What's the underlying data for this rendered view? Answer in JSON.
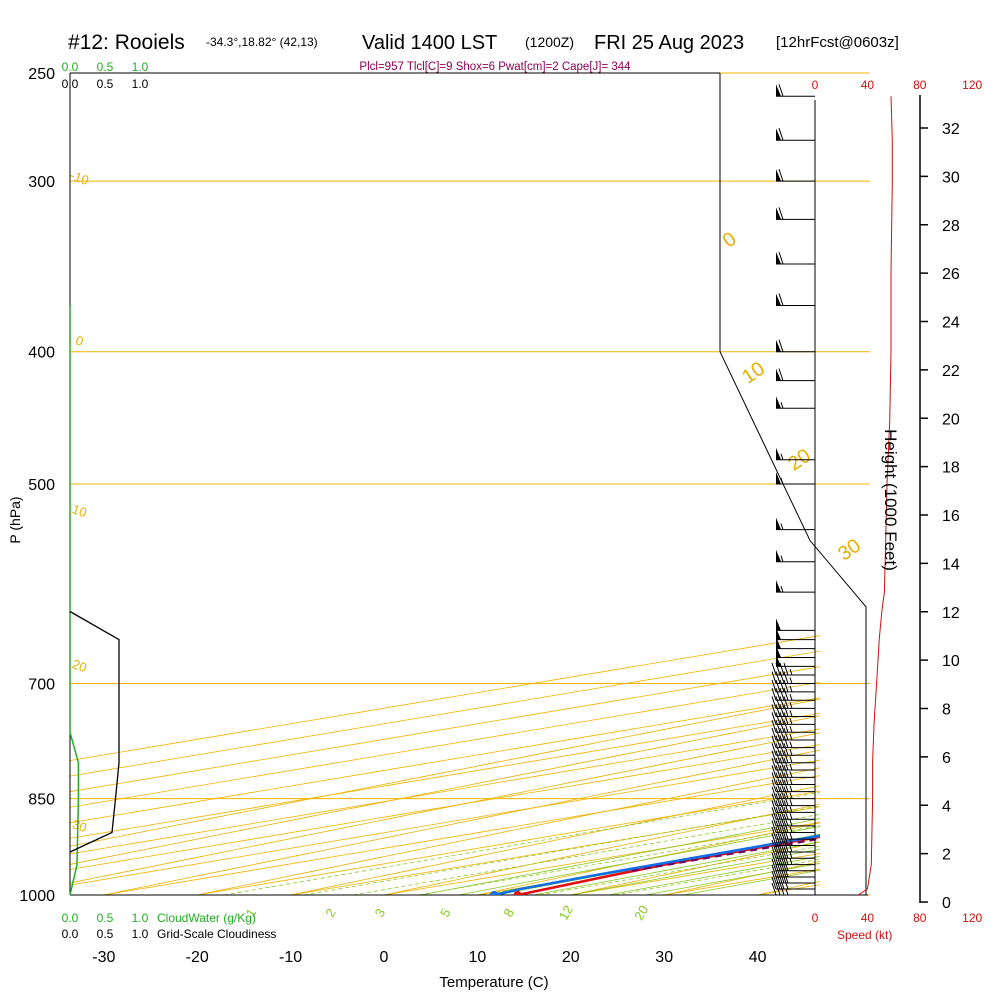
{
  "header": {
    "station": "#12: Rooiels",
    "coords": "-34.3°,18.82° (42,13)",
    "valid": "Valid 1400 LST",
    "zulu": "(1200Z)",
    "date": "FRI 25 Aug 2023",
    "fcst": "[12hrFcst@0603z]",
    "indices": "Plcl=957 Tlcl[C]=9 Shox=6 Pwat[cm]=2 Cape[J]= 344"
  },
  "labels": {
    "pressure_axis": "P (hPa)",
    "temperature_axis": "Temperature (C)",
    "height_axis": "Height (1000 Feet)",
    "speed_axis": "Speed (kt)",
    "cloudwater": "CloudWater (g/Kg)",
    "cloudiness": "Grid-Scale Cloudiness"
  },
  "colors": {
    "isobar": "#f0b400",
    "dry_adiabat": "#e8b000",
    "moist_adiabat": "#88c820",
    "mixing_ratio": "#88c820",
    "temperature": "#e01010",
    "dewpoint": "#1070e8",
    "parcel": "#700060",
    "cloudwater": "#20b020",
    "cloudiness": "#000000",
    "wind_speed": "#d01010",
    "indices": "#900050"
  },
  "chart_data": {
    "type": "line",
    "diagram": "skew-T log-P",
    "pressure_ticks": [
      250,
      300,
      400,
      500,
      700,
      850,
      1000
    ],
    "temperature_ticks": [
      -30,
      -20,
      -10,
      0,
      10,
      20,
      30,
      40
    ],
    "height_ticks_kft": [
      0,
      2,
      4,
      6,
      8,
      10,
      12,
      14,
      16,
      18,
      20,
      22,
      24,
      26,
      28,
      30,
      32
    ],
    "speed_ticks_kt": [
      0,
      40,
      80,
      120
    ],
    "cloud_ticks": [
      "0.0",
      "0.5",
      "1.0"
    ],
    "dry_adiabat_labels": [
      "-10",
      "0",
      "10",
      "20",
      "30",
      "0",
      "10",
      "20",
      "30"
    ],
    "mixing_ratio_labels": [
      "1",
      "2",
      "3",
      "5",
      "8",
      "12",
      "20"
    ],
    "series": [
      {
        "key": "temperature",
        "name": "",
        "points": [
          [
            1000,
            14.3
          ],
          [
            970,
            12.0
          ],
          [
            950,
            10.5
          ],
          [
            900,
            9.0
          ],
          [
            850,
            8.3
          ],
          [
            800,
            7.3
          ],
          [
            750,
            6.2
          ],
          [
            700,
            5.0
          ],
          [
            650,
            3.8
          ],
          [
            600,
            3.4
          ],
          [
            550,
            3.5
          ],
          [
            500,
            2.5
          ],
          [
            450,
            1.0
          ],
          [
            400,
            -1.5
          ],
          [
            350,
            -5.0
          ],
          [
            320,
            -6.5
          ],
          [
            300,
            -7.0
          ],
          [
            280,
            -6.5
          ],
          [
            260,
            -5.0
          ]
        ]
      },
      {
        "key": "dewpoint",
        "name": "",
        "points": [
          [
            1000,
            11.8
          ],
          [
            990,
            10.8
          ],
          [
            970,
            10.0
          ],
          [
            950,
            9.5
          ],
          [
            900,
            8.5
          ],
          [
            850,
            7.0
          ],
          [
            800,
            4.8
          ],
          [
            750,
            3.5
          ],
          [
            700,
            2.5
          ],
          [
            680,
            1.5
          ],
          [
            650,
            -0.5
          ],
          [
            620,
            -4
          ],
          [
            600,
            -9
          ],
          [
            580,
            -14
          ],
          [
            550,
            -21
          ],
          [
            500,
            -27
          ],
          [
            450,
            -33
          ],
          [
            420,
            -40
          ],
          [
            400,
            -48
          ],
          [
            375,
            -52
          ],
          [
            350,
            -54
          ],
          [
            300,
            -56
          ],
          [
            270,
            -56
          ]
        ]
      },
      {
        "key": "parcel",
        "name": "",
        "points": [
          [
            960,
            11.0
          ],
          [
            900,
            10.5
          ],
          [
            850,
            9.6
          ],
          [
            800,
            8.4
          ],
          [
            750,
            7.0
          ],
          [
            700,
            5.4
          ],
          [
            650,
            3.5
          ],
          [
            600,
            1.3
          ]
        ]
      }
    ],
    "cloudwater_gkg": [
      [
        1000,
        0.0
      ],
      [
        950,
        0.1
      ],
      [
        850,
        0.12
      ],
      [
        800,
        0.12
      ],
      [
        760,
        0.0
      ],
      [
        370,
        0.0
      ]
    ],
    "cloudiness": [
      [
        930,
        0.0
      ],
      [
        900,
        0.6
      ],
      [
        850,
        0.65
      ],
      [
        800,
        0.7
      ],
      [
        700,
        0.7
      ],
      [
        650,
        0.7
      ],
      [
        620,
        0.0
      ]
    ],
    "wind_speed_kt": [
      [
        1000,
        33
      ],
      [
        990,
        40
      ],
      [
        950,
        43
      ],
      [
        850,
        44
      ],
      [
        800,
        44
      ],
      [
        750,
        45
      ],
      [
        700,
        47
      ],
      [
        650,
        49
      ],
      [
        620,
        51
      ],
      [
        600,
        53
      ],
      [
        550,
        54
      ],
      [
        500,
        55
      ],
      [
        450,
        57
      ],
      [
        400,
        58
      ],
      [
        350,
        58
      ],
      [
        300,
        59
      ],
      [
        280,
        59
      ],
      [
        260,
        58
      ]
    ],
    "wind_direction_note": "westerly barbs from surface to ~260 hPa",
    "grid": true
  }
}
